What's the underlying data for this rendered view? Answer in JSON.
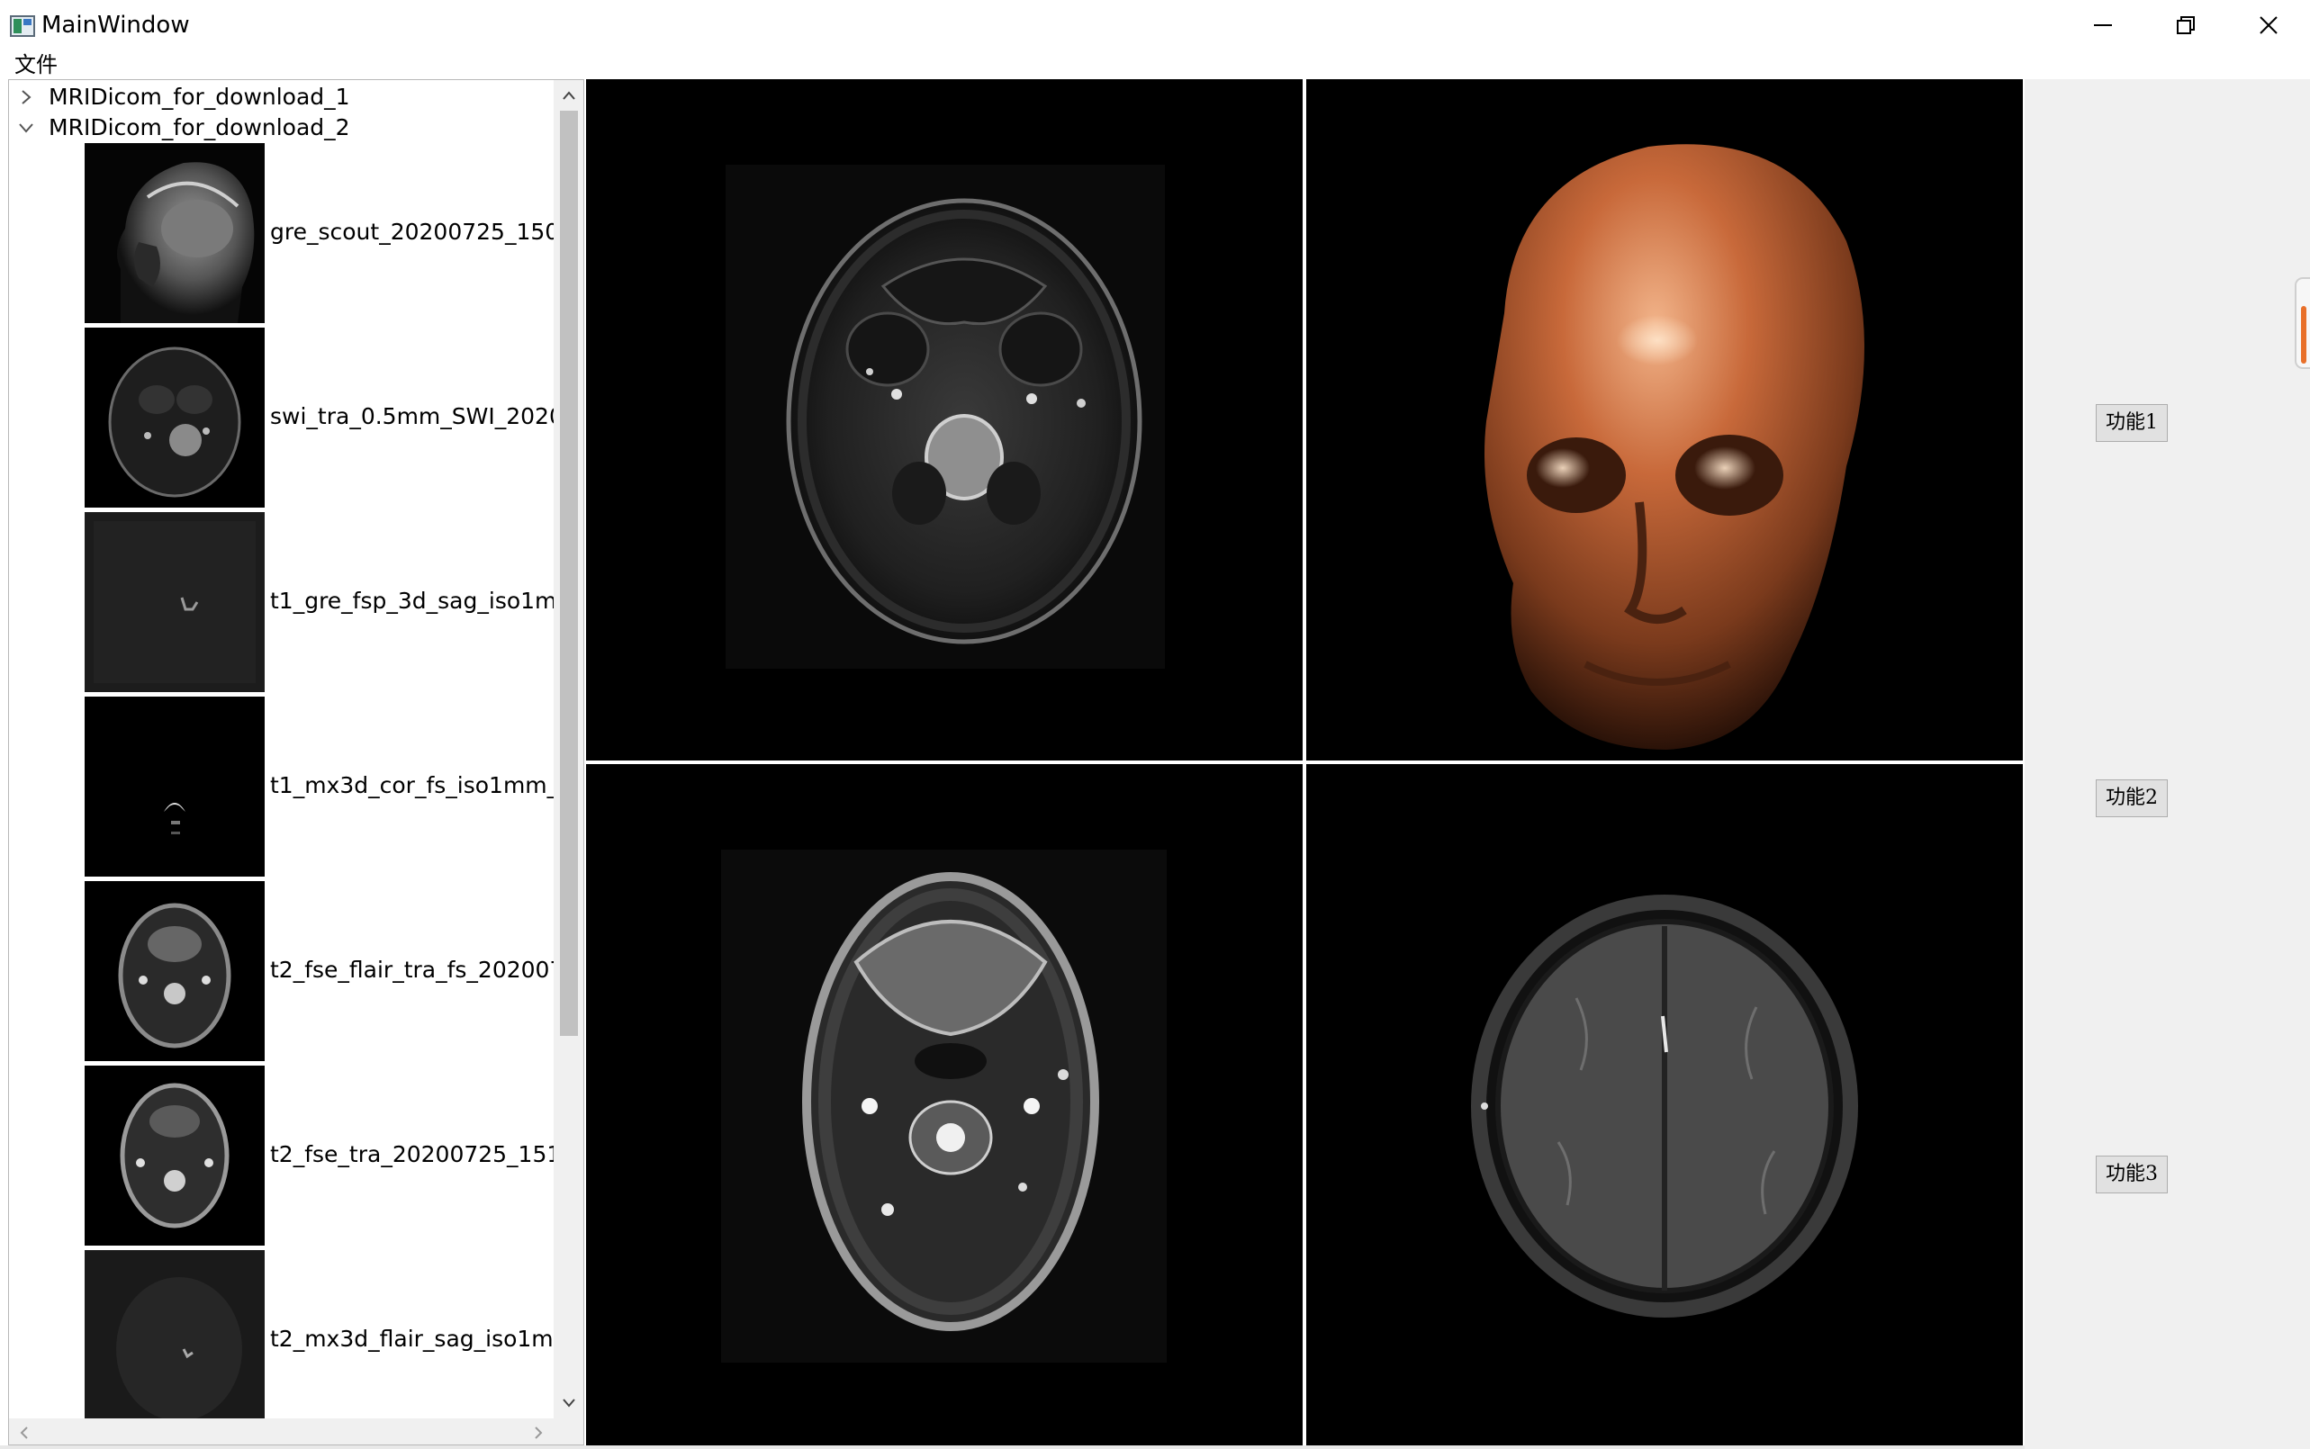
{
  "window": {
    "title": "MainWindow",
    "controls": [
      "minimize-icon",
      "restore-icon",
      "close-icon"
    ]
  },
  "menubar": {
    "file": "文件"
  },
  "tree": {
    "folders": [
      {
        "label": "MRIDicom_for_download_1",
        "expanded": false
      },
      {
        "label": "MRIDicom_for_download_2",
        "expanded": true
      }
    ],
    "series": [
      {
        "label": "gre_scout_20200725_150...",
        "thumb": "sagittal-head"
      },
      {
        "label": "swi_tra_0.5mm_SWI_2020...",
        "thumb": "axial-swi"
      },
      {
        "label": "t1_gre_fsp_3d_sag_iso1m...",
        "thumb": "noise"
      },
      {
        "label": "t1_mx3d_cor_fs_iso1mm_...",
        "thumb": "dark-coronal"
      },
      {
        "label": "t2_fse_flair_tra_fs_202007...",
        "thumb": "axial-neck"
      },
      {
        "label": "t2_fse_tra_20200725_151...",
        "thumb": "axial-neck-2"
      },
      {
        "label": "t2_mx3d_flair_sag_iso1m...",
        "thumb": "noise-2"
      }
    ]
  },
  "viewer": {
    "panes": [
      {
        "id": "top-left",
        "content": "axial SWI slice"
      },
      {
        "id": "top-right",
        "content": "3D volume render"
      },
      {
        "id": "bottom-left",
        "content": "axial T2 neck slice"
      },
      {
        "id": "bottom-right",
        "content": "axial T1 brain slice"
      }
    ]
  },
  "functions": {
    "btn1": "功能1",
    "btn2": "功能2",
    "btn3": "功能3"
  },
  "colors": {
    "pane_background": "#000000",
    "panel_background": "#f0f0f0",
    "render_skin": "#c8693a",
    "scroll_indicator": "#e8702a"
  }
}
